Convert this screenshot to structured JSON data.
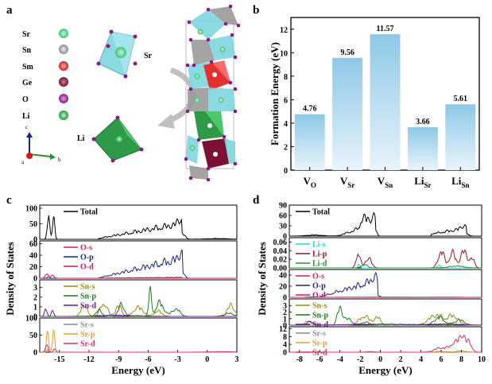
{
  "panels": {
    "a": "a",
    "b": "b",
    "c": "c",
    "d": "d"
  },
  "structure": {
    "legend": [
      {
        "label": "Sr",
        "color": "#3ec47a"
      },
      {
        "label": "Sn",
        "color": "#9a9a9a"
      },
      {
        "label": "Sm",
        "color": "#e02424"
      },
      {
        "label": "Ge",
        "color": "#7b1235"
      },
      {
        "label": "O",
        "color": "#a0239b"
      },
      {
        "label": "Li",
        "color": "#27b14a"
      }
    ],
    "sr_label": "Sr",
    "li_label": "Li",
    "axes": {
      "c": "c",
      "a": "a",
      "b": "b"
    }
  },
  "chart_data": [
    {
      "type": "bar",
      "panel": "b",
      "categories": [
        "V_O",
        "V_Sr",
        "V_Sn",
        "Li_Sr",
        "Li_Sn"
      ],
      "category_labels": [
        {
          "main": "V",
          "sub": "O"
        },
        {
          "main": "V",
          "sub": "Sr"
        },
        {
          "main": "V",
          "sub": "Sn"
        },
        {
          "main": "Li",
          "sub": "Sr"
        },
        {
          "main": "Li",
          "sub": "Sn"
        }
      ],
      "values": [
        4.76,
        9.56,
        11.57,
        3.66,
        5.61
      ],
      "value_labels": [
        "4.76",
        "9.56",
        "11.57",
        "3.66",
        "5.61"
      ],
      "ylabel": "Formation Energy (eV)",
      "ylim": [
        0,
        13
      ],
      "yticks": [
        "0",
        "2",
        "4",
        "6",
        "8",
        "10",
        "12"
      ],
      "bar_color": "#8ec8e6"
    },
    {
      "type": "line",
      "panel": "c",
      "xlabel": "Energy (eV)",
      "ylabel": "Density of States",
      "xlim": [
        -17,
        3
      ],
      "xticks": [
        "-15",
        "-12",
        "-9",
        "-6",
        "-3",
        "0",
        "3"
      ],
      "subplots": [
        {
          "ylim": [
            0,
            110
          ],
          "yticks": [
            "0",
            "50",
            "100"
          ],
          "series": [
            {
              "name": "Total",
              "color": "#000000"
            }
          ]
        },
        {
          "ylim": [
            0,
            65
          ],
          "yticks": [
            "0",
            "20",
            "40",
            "60"
          ],
          "series": [
            {
              "name": "O-s",
              "color": "#d6204a"
            },
            {
              "name": "O-p",
              "color": "#1a237e"
            },
            {
              "name": "O-d",
              "color": "#c2185b"
            }
          ]
        },
        {
          "ylim": [
            0,
            3.8
          ],
          "yticks": [
            "0",
            "1",
            "2",
            "3"
          ],
          "series": [
            {
              "name": "Sn-s",
              "color": "#9b8a1a"
            },
            {
              "name": "Sn-p",
              "color": "#1e7b1e"
            },
            {
              "name": "Sn-d",
              "color": "#6a1b9a"
            }
          ]
        },
        {
          "ylim": [
            0,
            100
          ],
          "yticks": [
            "0",
            "50",
            "100"
          ],
          "series": [
            {
              "name": "Sr-s",
              "color": "#8a8aa8"
            },
            {
              "name": "Sr-p",
              "color": "#e0a030"
            },
            {
              "name": "Sr-d",
              "color": "#d6306a"
            }
          ]
        }
      ]
    },
    {
      "type": "line",
      "panel": "d",
      "xlabel": "Energy (eV)",
      "ylabel": "Density of States",
      "xlim": [
        -9,
        10
      ],
      "xticks": [
        "-8",
        "-6",
        "-4",
        "-2",
        "0",
        "2",
        "4",
        "6",
        "8",
        "10"
      ],
      "subplots": [
        {
          "ylim": [
            0,
            90
          ],
          "yticks": [
            "0",
            "30",
            "60",
            "90"
          ],
          "series": [
            {
              "name": "Total",
              "color": "#000000"
            }
          ]
        },
        {
          "ylim": [
            0,
            0.07
          ],
          "yticks": [
            "0.00",
            "0.02",
            "0.04",
            "0.06"
          ],
          "series": [
            {
              "name": "Li-s",
              "color": "#24d6c0"
            },
            {
              "name": "Li-p",
              "color": "#8b1a2b"
            },
            {
              "name": "Li-d",
              "color": "#2e8b3a"
            }
          ]
        },
        {
          "ylim": [
            0,
            50
          ],
          "yticks": [
            "0",
            "20",
            "40"
          ],
          "series": [
            {
              "name": "O-s",
              "color": "#d6204a"
            },
            {
              "name": "O-p",
              "color": "#1a237e"
            },
            {
              "name": "O-d",
              "color": "#c2185b"
            }
          ]
        },
        {
          "ylim": [
            0,
            4
          ],
          "yticks": [
            "0",
            "1",
            "2",
            "3"
          ],
          "series": [
            {
              "name": "Sn-s",
              "color": "#9b8a1a"
            },
            {
              "name": "Sn-p",
              "color": "#1e7b1e"
            },
            {
              "name": "Sn-d",
              "color": "#6a1b9a"
            }
          ]
        },
        {
          "ylim": [
            0,
            13
          ],
          "yticks": [
            "0",
            "4",
            "8",
            "12"
          ],
          "series": [
            {
              "name": "Sr-s",
              "color": "#8a8aa8"
            },
            {
              "name": "Sr-p",
              "color": "#e0a030"
            },
            {
              "name": "Sr-d",
              "color": "#d6306a"
            }
          ]
        }
      ]
    }
  ]
}
